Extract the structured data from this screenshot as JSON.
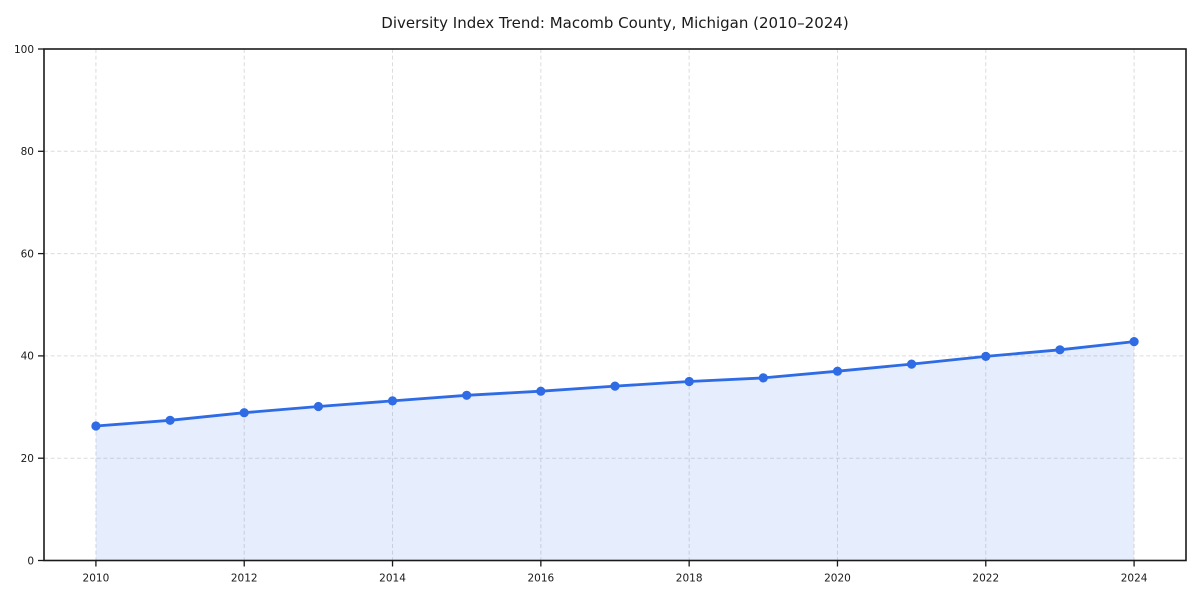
{
  "chart_data": {
    "type": "line",
    "title": "Diversity Index Trend: Macomb County, Michigan (2010–2024)",
    "x": [
      2010,
      2011,
      2012,
      2013,
      2014,
      2015,
      2016,
      2017,
      2018,
      2019,
      2020,
      2021,
      2022,
      2023,
      2024
    ],
    "series": [
      {
        "name": "Diversity Index",
        "values": [
          26.3,
          27.4,
          28.9,
          30.1,
          31.2,
          32.3,
          33.1,
          34.1,
          35.0,
          35.7,
          37.0,
          38.4,
          39.9,
          41.2,
          42.8
        ]
      }
    ],
    "xlabel": "",
    "ylabel": "",
    "xlim": [
      2009.3,
      2024.7
    ],
    "ylim": [
      0,
      100
    ],
    "xticks": [
      2010,
      2012,
      2014,
      2016,
      2018,
      2020,
      2022,
      2024
    ],
    "yticks": [
      0,
      20,
      40,
      60,
      80,
      100
    ],
    "grid": true,
    "grid_style": "dashed",
    "legend": false,
    "area_fill": true,
    "marker": "circle",
    "colors": {
      "line": "#2e6be4",
      "fill": "#2e6be4",
      "fill_opacity": 0.12,
      "grid": "#dcdcdc",
      "axis": "#1a1a1a",
      "text": "#1a1a1a",
      "background": "#ffffff"
    }
  }
}
